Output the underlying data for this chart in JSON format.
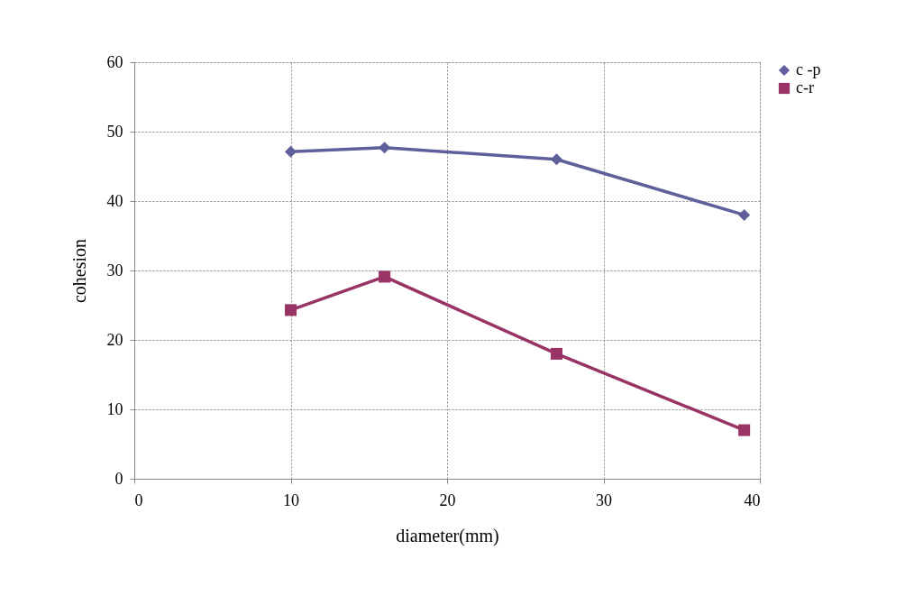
{
  "chart_data": {
    "type": "line",
    "xlabel": "diameter(mm)",
    "ylabel": "cohesion",
    "x": [
      10,
      16,
      27,
      39
    ],
    "series": [
      {
        "name": "c -p",
        "color": "#5f5f9c",
        "marker": "diamond",
        "values": [
          47.1,
          47.7,
          46,
          38
        ]
      },
      {
        "name": "c-r",
        "color": "#993366",
        "marker": "square",
        "values": [
          24.3,
          29.1,
          18,
          7
        ]
      }
    ],
    "xlim": [
      0,
      40
    ],
    "xticks": [
      0,
      10,
      20,
      30,
      40
    ],
    "ylim": [
      0,
      60
    ],
    "yticks": [
      0,
      10,
      20,
      30,
      40,
      50,
      60
    ],
    "grid": true,
    "legend": "right",
    "line_style": "solid"
  }
}
